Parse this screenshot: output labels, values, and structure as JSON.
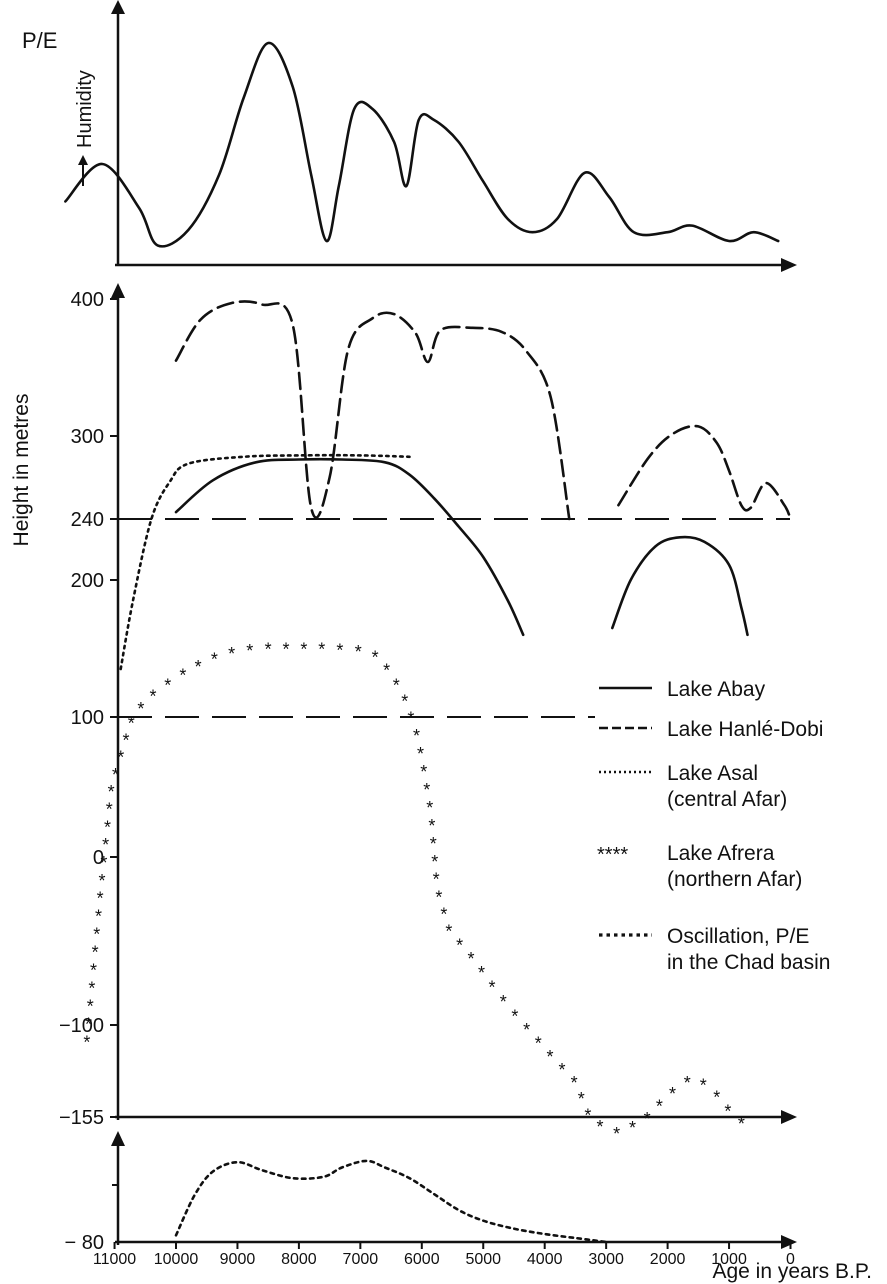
{
  "chart_data": [
    {
      "type": "line",
      "ylabel": "P/E",
      "yarrow_label": "Humidity",
      "x_direction": "reversed",
      "series": [
        {
          "name": "",
          "points": [
            [
              11800,
              2.3
            ],
            [
              11200,
              4.0
            ],
            [
              10600,
              2.0
            ],
            [
              10300,
              0.3
            ],
            [
              9800,
              1.0
            ],
            [
              9300,
              3.5
            ],
            [
              8900,
              7.0
            ],
            [
              8500,
              9.5
            ],
            [
              8100,
              7.5
            ],
            [
              7800,
              3.5
            ],
            [
              7550,
              0.5
            ],
            [
              7350,
              3.0
            ],
            [
              7100,
              6.5
            ],
            [
              6800,
              6.5
            ],
            [
              6450,
              5.0
            ],
            [
              6250,
              3.0
            ],
            [
              6050,
              6.0
            ],
            [
              5800,
              6.0
            ],
            [
              5400,
              5.0
            ],
            [
              5000,
              3.2
            ],
            [
              4600,
              1.5
            ],
            [
              4200,
              0.9
            ],
            [
              3800,
              1.5
            ],
            [
              3350,
              3.6
            ],
            [
              2950,
              2.5
            ],
            [
              2550,
              0.9
            ],
            [
              2000,
              0.9
            ],
            [
              1600,
              1.2
            ],
            [
              1000,
              0.5
            ],
            [
              600,
              0.9
            ],
            [
              200,
              0.5
            ]
          ]
        }
      ]
    },
    {
      "type": "line",
      "ylabel": "Height in metres",
      "yticks": [
        400,
        300,
        240,
        200,
        100,
        0,
        -100,
        -155
      ],
      "reference_levels": [
        240,
        100
      ],
      "x_direction": "reversed",
      "series": [
        {
          "name": "Lake Abay",
          "style": "solid",
          "segments": [
            [
              [
                10000,
                245
              ],
              [
                9400,
                268
              ],
              [
                8700,
                281
              ],
              [
                8000,
                283
              ],
              [
                7300,
                283
              ],
              [
                6600,
                281
              ],
              [
                6200,
                272
              ],
              [
                5800,
                255
              ],
              [
                5400,
                235
              ],
              [
                5000,
                215
              ],
              [
                4600,
                185
              ],
              [
                4350,
                160
              ]
            ],
            [
              [
                2900,
                165
              ],
              [
                2600,
                200
              ],
              [
                2200,
                222
              ],
              [
                1800,
                228
              ],
              [
                1400,
                225
              ],
              [
                1000,
                210
              ],
              [
                800,
                180
              ],
              [
                700,
                160
              ]
            ]
          ]
        },
        {
          "name": "Lake Hanlé-Dobi",
          "style": "dashed",
          "segments": [
            [
              [
                10000,
                355
              ],
              [
                9600,
                385
              ],
              [
                9100,
                397
              ],
              [
                8600,
                396
              ],
              [
                8100,
                381
              ],
              [
                7800,
                248
              ],
              [
                7500,
                270
              ],
              [
                7200,
                363
              ],
              [
                6800,
                386
              ],
              [
                6450,
                389
              ],
              [
                6100,
                375
              ],
              [
                5900,
                354
              ],
              [
                5700,
                377
              ],
              [
                5200,
                379
              ],
              [
                4700,
                376
              ],
              [
                4300,
                362
              ],
              [
                3900,
                328
              ],
              [
                3600,
                240
              ]
            ],
            [
              [
                2800,
                250
              ],
              [
                2300,
                285
              ],
              [
                1900,
                302
              ],
              [
                1500,
                307
              ],
              [
                1200,
                295
              ],
              [
                1000,
                275
              ],
              [
                800,
                250
              ],
              [
                650,
                248
              ],
              [
                400,
                266
              ],
              [
                100,
                250
              ],
              [
                0,
                240
              ]
            ]
          ]
        },
        {
          "name": "Lake Asal (central Afar)",
          "style": "dotted",
          "segments": [
            [
              [
                10900,
                135
              ],
              [
                10700,
                185
              ],
              [
                10400,
                240
              ],
              [
                10100,
                267
              ],
              [
                9800,
                280
              ],
              [
                8900,
                285
              ],
              [
                8000,
                286
              ],
              [
                7000,
                286
              ],
              [
                6200,
                285
              ]
            ]
          ]
        },
        {
          "name": "Lake Afrera (northern Afar)",
          "style": "asterisks",
          "segments": [
            [
              [
                11450,
                -110
              ],
              [
                11250,
                -30
              ],
              [
                11050,
                50
              ],
              [
                10700,
                100
              ],
              [
                10400,
                115
              ],
              [
                10000,
                128
              ],
              [
                9500,
                141
              ],
              [
                9000,
                148
              ],
              [
                8500,
                150
              ],
              [
                7500,
                150
              ],
              [
                7000,
                148
              ],
              [
                6700,
                143
              ],
              [
                6500,
                130
              ],
              [
                6300,
                115
              ],
              [
                6100,
                90
              ],
              [
                6000,
                70
              ],
              [
                5850,
                30
              ],
              [
                5750,
                -20
              ],
              [
                5550,
                -45
              ],
              [
                5200,
                -60
              ],
              [
                4800,
                -80
              ],
              [
                4400,
                -98
              ],
              [
                4000,
                -115
              ],
              [
                3500,
                -135
              ],
              [
                3250,
                -158
              ],
              [
                2800,
                -165
              ],
              [
                2400,
                -158
              ],
              [
                2000,
                -143
              ],
              [
                1600,
                -132
              ],
              [
                1300,
                -138
              ],
              [
                1000,
                -152
              ],
              [
                700,
                -162
              ]
            ]
          ]
        }
      ]
    },
    {
      "type": "line",
      "xlabel": "Age in years B.P.",
      "xticks": [
        11000,
        10000,
        9000,
        8000,
        7000,
        6000,
        5000,
        4000,
        3000,
        2000,
        1000,
        0
      ],
      "yticks": [
        -80
      ],
      "x_direction": "reversed",
      "series": [
        {
          "name": "Oscillation, P/E in the Chad basin",
          "style": "dotted",
          "segments": [
            [
              [
                10000,
                0.5
              ],
              [
                9700,
                3.5
              ],
              [
                9400,
                5.3
              ],
              [
                9000,
                6.0
              ],
              [
                8600,
                5.4
              ],
              [
                8100,
                4.8
              ],
              [
                7600,
                4.9
              ],
              [
                7300,
                5.6
              ],
              [
                6900,
                6.1
              ],
              [
                6600,
                5.6
              ],
              [
                6200,
                4.8
              ],
              [
                5800,
                3.6
              ],
              [
                5400,
                2.4
              ],
              [
                5000,
                1.6
              ],
              [
                4500,
                1.0
              ],
              [
                4000,
                0.6
              ],
              [
                3500,
                0.3
              ],
              [
                3000,
                0.0
              ]
            ]
          ]
        }
      ]
    }
  ]
}
